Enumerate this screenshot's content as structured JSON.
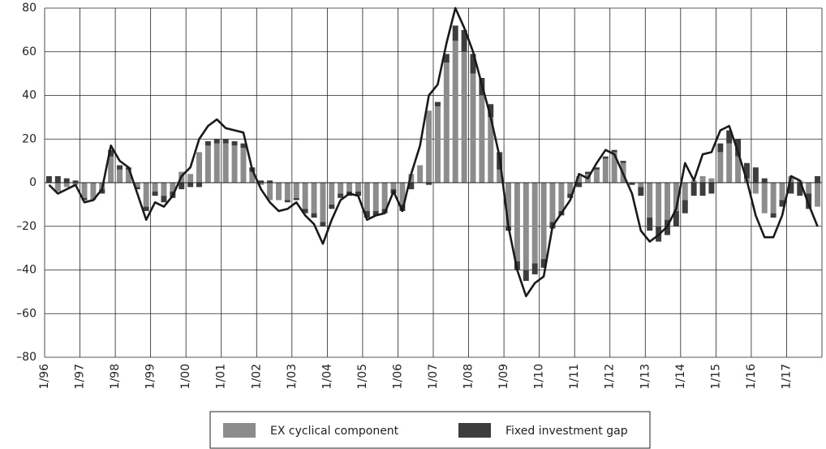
{
  "chart_data": {
    "type": "bar",
    "categories": [
      "1/96",
      null,
      null,
      null,
      "1/97",
      null,
      null,
      null,
      "1/98",
      null,
      null,
      null,
      "1/99",
      null,
      null,
      null,
      "1/00",
      null,
      null,
      null,
      "1/01",
      null,
      null,
      null,
      "1/02",
      null,
      null,
      null,
      "1/03",
      null,
      null,
      null,
      "1/04",
      null,
      null,
      null,
      "1/05",
      null,
      null,
      null,
      "1/06",
      null,
      null,
      null,
      "1/07",
      null,
      null,
      null,
      "1/08",
      null,
      null,
      null,
      "1/09",
      null,
      null,
      null,
      "1/10",
      null,
      null,
      null,
      "1/11",
      null,
      null,
      null,
      "1/12",
      null,
      null,
      null,
      "1/13",
      null,
      null,
      null,
      "1/14",
      null,
      null,
      null,
      "1/15",
      null,
      null,
      null,
      "1/16",
      null,
      null,
      null,
      "1/17",
      null,
      null,
      null
    ],
    "series": [
      {
        "name": "EX cyclical component",
        "color": "#8c8c8c",
        "values": [
          0,
          -4,
          -2,
          -1,
          -7,
          -8,
          -3,
          12,
          6,
          6,
          -2,
          -11,
          -4,
          -6,
          -4,
          5,
          4,
          14,
          17,
          18,
          18,
          17,
          16,
          5,
          -1,
          -8,
          -8,
          -8,
          -7,
          -12,
          -14,
          -18,
          -10,
          -5,
          -4,
          -4,
          -13,
          -13,
          -12,
          -3,
          -10,
          4,
          8,
          33,
          35,
          55,
          65,
          60,
          50,
          40,
          30,
          6,
          -20,
          -36,
          -40,
          -37,
          -35,
          -18,
          -13,
          -5,
          3,
          4,
          6,
          11,
          14,
          9,
          0,
          -2,
          -16,
          -20,
          -17,
          -13,
          -8,
          1,
          3,
          2,
          14,
          18,
          12,
          2,
          -5,
          -14,
          -14,
          -8,
          3,
          1,
          -5,
          -11
        ]
      },
      {
        "name": "Fixed investment gap",
        "color": "#3d3d3d",
        "values": [
          3,
          3,
          2,
          1,
          -1,
          0,
          -2,
          3,
          2,
          1,
          -1,
          -2,
          -2,
          -3,
          -3,
          -3,
          -2,
          -2,
          2,
          2,
          2,
          2,
          2,
          2,
          1,
          1,
          0,
          -1,
          -1,
          -2,
          -2,
          -2,
          -2,
          -2,
          -2,
          -2,
          -3,
          -2,
          -2,
          -2,
          -3,
          -3,
          0,
          -1,
          2,
          4,
          7,
          10,
          9,
          8,
          6,
          8,
          -2,
          -4,
          -5,
          -5,
          -4,
          -3,
          -2,
          -2,
          -2,
          1,
          1,
          1,
          1,
          1,
          -1,
          -4,
          -6,
          -7,
          -7,
          -7,
          -6,
          -6,
          -6,
          -5,
          4,
          6,
          8,
          7,
          7,
          2,
          -2,
          -3,
          -5,
          -6,
          -7,
          3
        ]
      },
      {
        "type": "line",
        "color": "#1a1a1a",
        "values": [
          -1,
          -5,
          -3,
          -1,
          -9,
          -8,
          -3,
          17,
          10,
          7,
          -5,
          -17,
          -9,
          -11,
          -6,
          3,
          7,
          20,
          26,
          29,
          25,
          24,
          23,
          6,
          -3,
          -9,
          -13,
          -12,
          -9,
          -15,
          -19,
          -28,
          -17,
          -8,
          -5,
          -6,
          -17,
          -15,
          -14,
          -4,
          -13,
          4,
          17,
          40,
          45,
          64,
          80,
          71,
          60,
          45,
          30,
          12,
          -20,
          -40,
          -52,
          -46,
          -43,
          -20,
          -14,
          -8,
          4,
          2,
          9,
          15,
          13,
          4,
          -5,
          -22,
          -27,
          -24,
          -20,
          -12,
          9,
          1,
          13,
          14,
          24,
          26,
          14,
          1,
          -15,
          -25,
          -25,
          -15,
          3,
          1,
          -10,
          -20
        ]
      }
    ],
    "ylim": [
      -80,
      80
    ],
    "yticks": [
      {
        "value": -80,
        "label": "–80"
      },
      {
        "value": -60,
        "label": "–60"
      },
      {
        "value": -40,
        "label": "–40"
      },
      {
        "value": -20,
        "label": "–20"
      },
      0,
      20,
      40,
      60,
      80
    ],
    "grid": true,
    "legend": "bottom"
  }
}
